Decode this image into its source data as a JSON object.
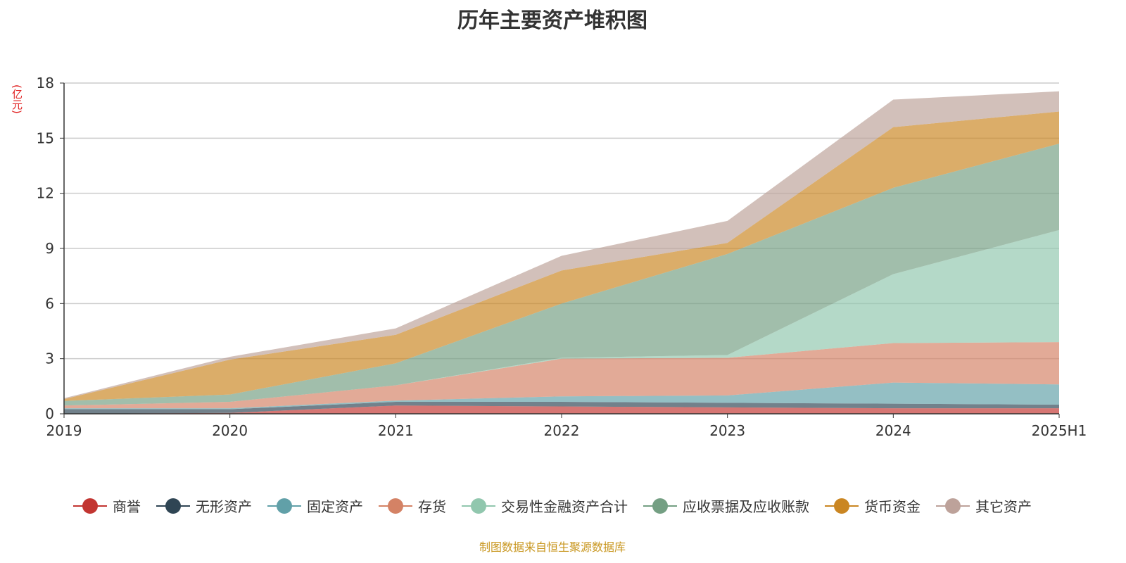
{
  "chart_data": {
    "type": "area",
    "stacked": true,
    "title": "历年主要资产堆积图",
    "ylabel": "(亿元)",
    "categories": [
      "2019",
      "2020",
      "2021",
      "2022",
      "2023",
      "2024",
      "2025H1"
    ],
    "ylim": [
      0,
      18
    ],
    "yticks": [
      "0",
      "3",
      "6",
      "9",
      "12",
      "15",
      "18"
    ],
    "grid": true,
    "legend_position": "bottom",
    "series": [
      {
        "name": "商誉",
        "color": "#c23531",
        "values": [
          0,
          0.05,
          0.45,
          0.4,
          0.35,
          0.3,
          0.3
        ]
      },
      {
        "name": "无形资产",
        "color": "#2f4554",
        "values": [
          0.25,
          0.2,
          0.2,
          0.25,
          0.25,
          0.25,
          0.2
        ]
      },
      {
        "name": "固定资产",
        "color": "#61a0a8",
        "values": [
          0.05,
          0.05,
          0.07,
          0.3,
          0.4,
          1.15,
          1.1
        ]
      },
      {
        "name": "存货",
        "color": "#d48265",
        "values": [
          0.15,
          0.35,
          0.83,
          2.05,
          2.05,
          2.15,
          2.3
        ]
      },
      {
        "name": "交易性金融资产合计",
        "color": "#91c7ae",
        "values": [
          0,
          0,
          0,
          0.05,
          0.15,
          3.75,
          6.1
        ]
      },
      {
        "name": "应收票据及应收账款",
        "color": "#749f83",
        "values": [
          0.25,
          0.4,
          1.2,
          2.95,
          5.5,
          4.7,
          4.7
        ]
      },
      {
        "name": "货币资金",
        "color": "#ca8622",
        "values": [
          0.1,
          1.9,
          1.55,
          1.8,
          0.6,
          3.3,
          1.75
        ]
      },
      {
        "name": "其它资产",
        "color": "#bda29a",
        "values": [
          0.05,
          0.15,
          0.35,
          0.8,
          1.2,
          1.5,
          1.1
        ]
      }
    ]
  },
  "footer": "制图数据来自恒生聚源数据库"
}
